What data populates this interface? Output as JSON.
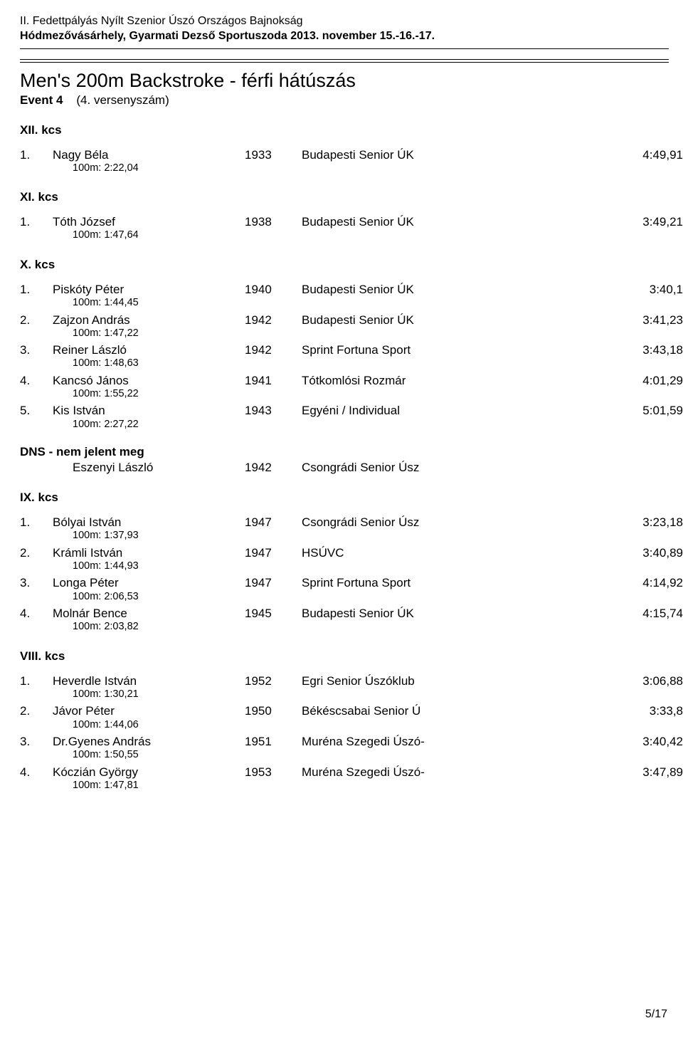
{
  "header": {
    "line1": "II. Fedettpályás Nyílt Szenior Úszó Országos Bajnokság",
    "line2": "Hódmezővásárhely, Gyarmati Dezső Sportuszoda 2013. november 15.-16.-17."
  },
  "event": {
    "title": "Men's 200m Backstroke - férfi hátúszás",
    "sub_strong": "Event 4",
    "sub_paren": "(4. versenyszám)"
  },
  "categories": [
    {
      "name": "XII. kcs",
      "rows": [
        {
          "place": "1.",
          "name": "Nagy Béla",
          "split": "100m:  2:22,04",
          "year": "1933",
          "club": "Budapesti Senior ÚK",
          "time": "4:49,91"
        }
      ]
    },
    {
      "name": "XI. kcs",
      "rows": [
        {
          "place": "1.",
          "name": "Tóth József",
          "split": "100m:  1:47,64",
          "year": "1938",
          "club": "Budapesti Senior ÚK",
          "time": "3:49,21"
        }
      ]
    },
    {
      "name": "X. kcs",
      "rows": [
        {
          "place": "1.",
          "name": "Piskóty Péter",
          "split": "100m:  1:44,45",
          "year": "1940",
          "club": "Budapesti Senior ÚK",
          "time": "3:40,1"
        },
        {
          "place": "2.",
          "name": "Zajzon András",
          "split": "100m:  1:47,22",
          "year": "1942",
          "club": "Budapesti Senior ÚK",
          "time": "3:41,23"
        },
        {
          "place": "3.",
          "name": "Reiner László",
          "split": "100m:  1:48,63",
          "year": "1942",
          "club": "Sprint Fortuna Sport",
          "time": "3:43,18"
        },
        {
          "place": "4.",
          "name": "Kancsó János",
          "split": "100m:  1:55,22",
          "year": "1941",
          "club": "Tótkomlósi Rozmár",
          "time": "4:01,29"
        },
        {
          "place": "5.",
          "name": "Kis István",
          "split": "100m:  2:27,22",
          "year": "1943",
          "club": "Egyéni / Individual",
          "time": "5:01,59"
        }
      ],
      "dns": {
        "heading": "DNS - nem jelent meg",
        "rows": [
          {
            "name": "Eszenyi László",
            "year": "1942",
            "club": "Csongrádi Senior Úsz"
          }
        ]
      }
    },
    {
      "name": "IX. kcs",
      "rows": [
        {
          "place": "1.",
          "name": "Bólyai István",
          "split": "100m:  1:37,93",
          "year": "1947",
          "club": "Csongrádi Senior Úsz",
          "time": "3:23,18"
        },
        {
          "place": "2.",
          "name": "Krámli István",
          "split": "100m:  1:44,93",
          "year": "1947",
          "club": "HSÚVC",
          "time": "3:40,89"
        },
        {
          "place": "3.",
          "name": "Longa Péter",
          "split": "100m:  2:06,53",
          "year": "1947",
          "club": "Sprint Fortuna Sport",
          "time": "4:14,92"
        },
        {
          "place": "4.",
          "name": "Molnár Bence",
          "split": "100m:  2:03,82",
          "year": "1945",
          "club": "Budapesti Senior ÚK",
          "time": "4:15,74"
        }
      ]
    },
    {
      "name": "VIII. kcs",
      "rows": [
        {
          "place": "1.",
          "name": "Heverdle István",
          "split": "100m:  1:30,21",
          "year": "1952",
          "club": "Egri Senior Úszóklub",
          "time": "3:06,88"
        },
        {
          "place": "2.",
          "name": "Jávor Péter",
          "split": "100m:  1:44,06",
          "year": "1950",
          "club": "Békéscsabai Senior Ú",
          "time": "3:33,8"
        },
        {
          "place": "3.",
          "name": "Dr.Gyenes András",
          "split": "100m:  1:50,55",
          "year": "1951",
          "club": "Muréna Szegedi Úszó-",
          "time": "3:40,42"
        },
        {
          "place": "4.",
          "name": "Kóczián György",
          "split": "100m:  1:47,81",
          "year": "1953",
          "club": "Muréna Szegedi Úszó-",
          "time": "3:47,89"
        }
      ]
    }
  ],
  "pagenum": "5/17"
}
